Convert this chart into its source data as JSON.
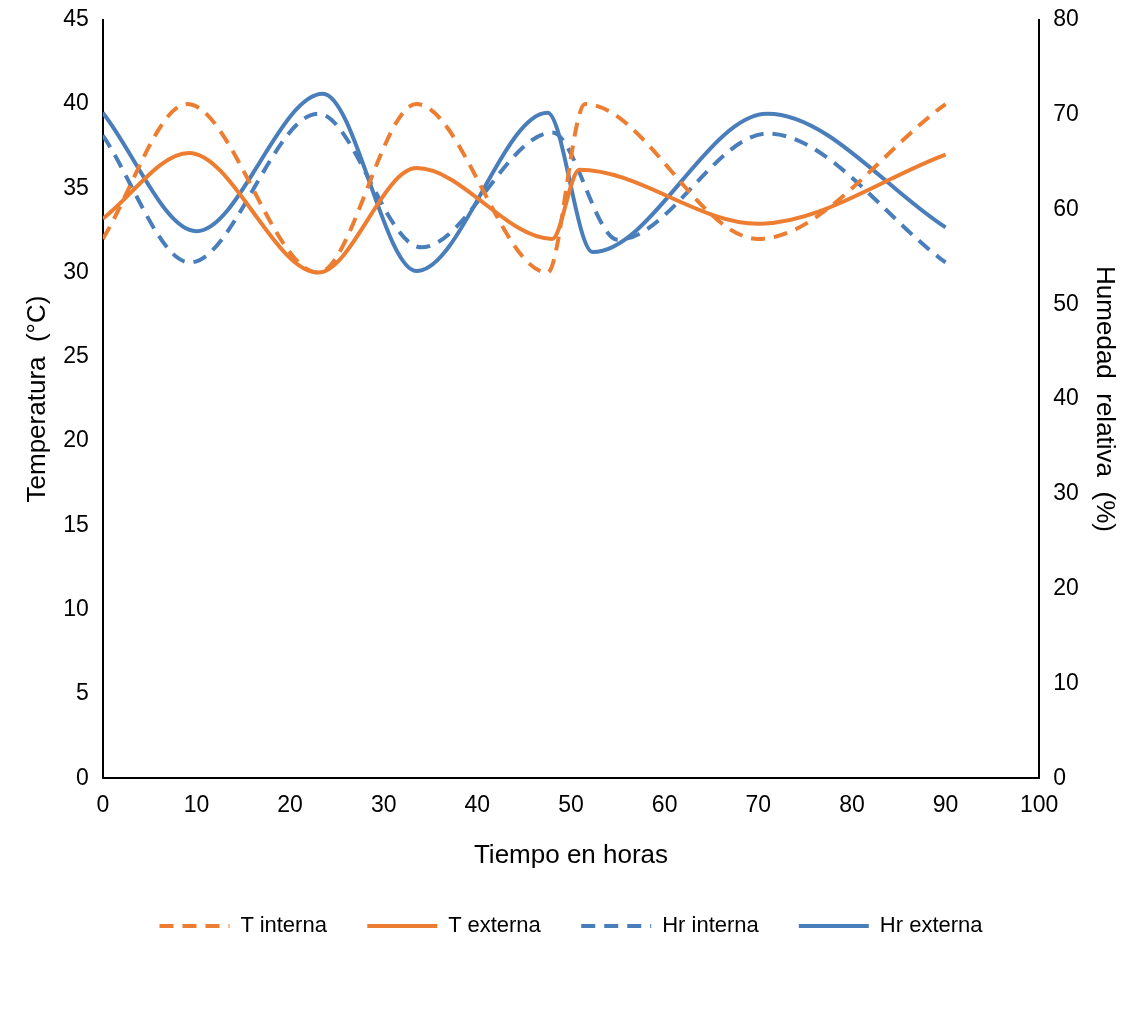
{
  "chart_data": {
    "type": "line",
    "xlabel": "Tiempo en horas",
    "ylabel": "Temperatura  (°C)",
    "y2label": "Humedad  relativa  (%)",
    "xlim": [
      0,
      100
    ],
    "xticks": [
      0,
      10,
      20,
      30,
      40,
      50,
      60,
      70,
      80,
      90,
      100
    ],
    "ylim": [
      0,
      45
    ],
    "yticks": [
      0,
      5,
      10,
      15,
      20,
      25,
      30,
      35,
      40,
      45
    ],
    "y2lim": [
      0,
      80
    ],
    "y2ticks": [
      0,
      10,
      20,
      30,
      40,
      50,
      60,
      70,
      80
    ],
    "grid": false,
    "legend": "bottom",
    "marker": "none",
    "series": [
      {
        "name": "T interna",
        "color": "#ed7d31",
        "line_style": "dashed",
        "x": [
          0,
          9,
          23,
          33.5,
          47.5,
          51.5,
          70,
          90
        ],
        "values": [
          32,
          40,
          30,
          40,
          30,
          40,
          32,
          40
        ]
      },
      {
        "name": "T externa",
        "color": "#ed7d31",
        "line_style": "solid",
        "x": [
          0,
          9.2,
          23,
          33.5,
          48,
          50.9,
          70,
          90
        ],
        "values": [
          33.2,
          37.1,
          30,
          36.2,
          32,
          36.1,
          32.9,
          37
        ]
      },
      {
        "name": "Hr interna",
        "color": "#4a7ebb",
        "line_style": "dashed",
        "axis": "y2",
        "x": [
          0,
          9.3,
          23,
          34,
          48,
          55,
          71,
          90
        ],
        "values": [
          67.8,
          54.4,
          70.1,
          56,
          68.1,
          56.8,
          68,
          54.4
        ]
      },
      {
        "name": "Hr externa",
        "color": "#4a7ebb",
        "line_style": "solid",
        "axis": "y2",
        "x": [
          0,
          10,
          23.5,
          33.5,
          47.5,
          52.3,
          71,
          90
        ],
        "values": [
          70.2,
          57.7,
          72.2,
          53.5,
          70.2,
          55.5,
          70.1,
          58.1
        ]
      }
    ]
  }
}
